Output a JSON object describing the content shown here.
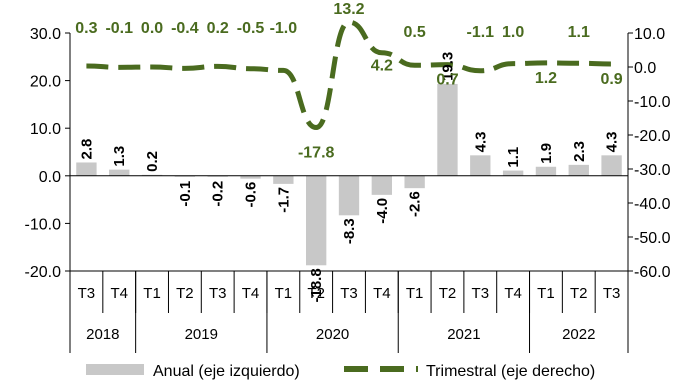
{
  "chart_data": {
    "type": "bar",
    "categories": [
      "T3",
      "T4",
      "T1",
      "T2",
      "T3",
      "T4",
      "T1",
      "T2",
      "T3",
      "T4",
      "T1",
      "T2",
      "T3",
      "T4",
      "T1",
      "T2",
      "T3"
    ],
    "years": [
      {
        "label": "2018",
        "start": 0,
        "end": 1
      },
      {
        "label": "2019",
        "start": 2,
        "end": 5
      },
      {
        "label": "2020",
        "start": 6,
        "end": 9
      },
      {
        "label": "2021",
        "start": 10,
        "end": 13
      },
      {
        "label": "2022",
        "start": 14,
        "end": 16
      }
    ],
    "series": [
      {
        "name": "Anual (eje izquierdo)",
        "kind": "bar",
        "axis": "left",
        "color": "#c8c8c8",
        "values": [
          2.8,
          1.3,
          0.2,
          -0.1,
          -0.2,
          -0.6,
          -1.7,
          -18.8,
          -8.3,
          -4.0,
          -2.6,
          19.3,
          4.3,
          1.1,
          1.9,
          2.3,
          4.3
        ],
        "labels": [
          "2.8",
          "1.3",
          "0.2",
          "-0.1",
          "-0.2",
          "-0.6",
          "-1.7",
          "-18.8",
          "-8.3",
          "-4.0",
          "-2.6",
          "19.3",
          "4.3",
          "1.1",
          "1.9",
          "2.3",
          "4.3"
        ]
      },
      {
        "name": "Trimestral (eje derecho)",
        "kind": "line",
        "style": "dashed",
        "axis": "right",
        "color": "#4a6b1f",
        "values": [
          0.3,
          -0.1,
          0.0,
          -0.4,
          0.2,
          -0.5,
          -1.0,
          -17.8,
          13.2,
          4.2,
          0.5,
          0.7,
          -1.1,
          1.0,
          1.2,
          1.1,
          0.9
        ],
        "labels": [
          "0.3",
          "-0.1",
          "0.0",
          "-0.4",
          "0.2",
          "-0.5",
          "-1.0",
          "-17.8",
          "13.2",
          "4.2",
          "0.5",
          "0.7",
          "-1.1",
          "1.0",
          "1.2",
          "1.1",
          "0.9"
        ]
      }
    ],
    "ylim_left": [
      -20,
      30
    ],
    "yticks_left": [
      30,
      20,
      10,
      0,
      -10,
      -20
    ],
    "yticklabels_left": [
      "30.0",
      "20.0",
      "10.0",
      "0.0",
      "-10.0",
      "-20.0"
    ],
    "ylim_right": [
      -60,
      10
    ],
    "yticks_right": [
      10,
      0,
      -10,
      -20,
      -30,
      -40,
      -50,
      -60
    ],
    "yticklabels_right": [
      "10.0",
      "0.0",
      "-10.0",
      "-20.0",
      "-30.0",
      "-40.0",
      "-50.0",
      "-60.0"
    ],
    "grid": false,
    "legend_position": "bottom"
  }
}
